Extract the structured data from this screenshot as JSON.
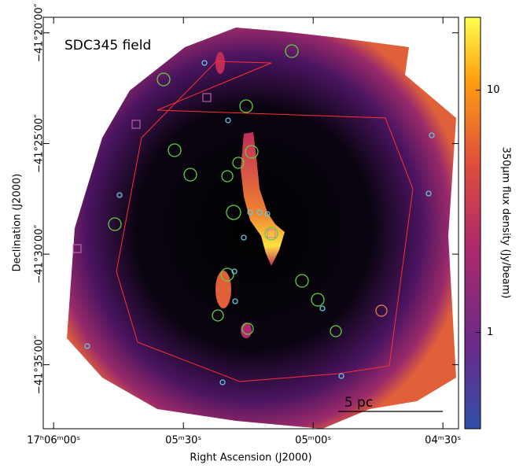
{
  "chart_data": {
    "type": "image",
    "annotation": "SDC345 field",
    "scale_bar_label": "5 pc",
    "x_label": "Right Ascension (J2000)",
    "y_label": "Declination (J2000)",
    "xlim": [
      256.51,
      256.11
    ],
    "xticks": [
      {
        "value": 256.5,
        "label": "17ʰ06ᵐ00ˢ"
      },
      {
        "value": 256.375,
        "label": "05ᵐ30ˢ"
      },
      {
        "value": 256.25,
        "label": "05ᵐ00ˢ"
      },
      {
        "value": 256.125,
        "label": "04ᵐ30ˢ"
      }
    ],
    "ylim": [
      -41.6315,
      -41.3216
    ],
    "yticks": [
      {
        "value": -41.3333,
        "label": "−41°20′00″"
      },
      {
        "value": -41.4167,
        "label": "−41°25′00″"
      },
      {
        "value": -41.5,
        "label": "−41°30′00″"
      },
      {
        "value": -41.5833,
        "label": "−41°35′00″"
      }
    ],
    "colorbar": {
      "label": "350μm flux density (Jy/beam)",
      "lim": [
        0.4,
        20
      ],
      "ticks": [
        1,
        10
      ],
      "log": true
    }
  }
}
